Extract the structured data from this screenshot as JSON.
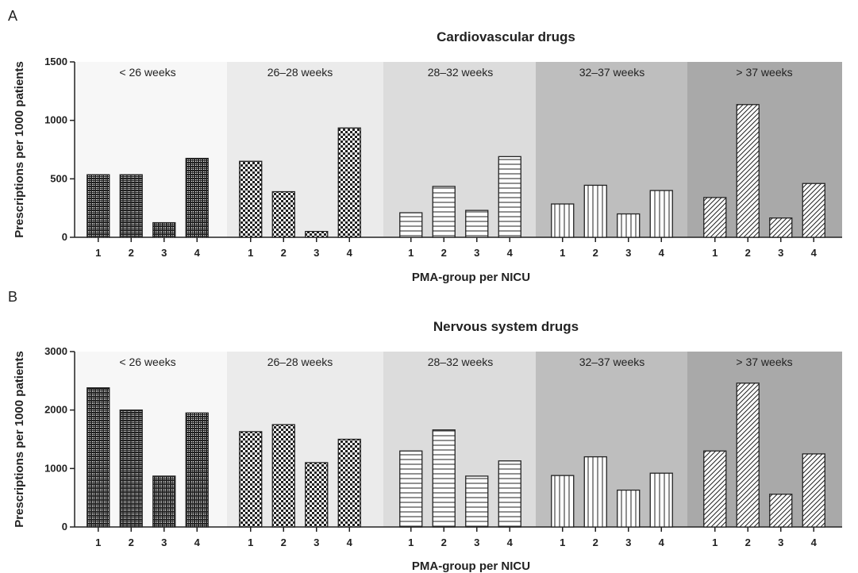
{
  "chart_data": [
    {
      "type": "bar",
      "panel": "A",
      "title": "Cardiovascular drugs",
      "xlabel": "PMA-group per NICU",
      "ylabel": "Prescriptions per 1000 patients",
      "ylim": [
        0,
        1500
      ],
      "yticks": [
        "0",
        "500",
        "1000",
        "1500"
      ],
      "categories": [
        "1",
        "2",
        "3",
        "4"
      ],
      "groups": [
        {
          "label": "< 26 weeks",
          "values": [
            535,
            535,
            125,
            675
          ]
        },
        {
          "label": "26–28 weeks",
          "values": [
            650,
            390,
            50,
            935
          ]
        },
        {
          "label": "28–32 weeks",
          "values": [
            210,
            435,
            230,
            690
          ]
        },
        {
          "label": "32–37 weeks",
          "values": [
            285,
            445,
            200,
            400
          ]
        },
        {
          "label": "> 37 weeks",
          "values": [
            340,
            1135,
            165,
            460
          ]
        }
      ]
    },
    {
      "type": "bar",
      "panel": "B",
      "title": "Nervous system drugs",
      "xlabel": "PMA-group per NICU",
      "ylabel": "Prescriptions per 1000 patients",
      "ylim": [
        0,
        3000
      ],
      "yticks": [
        "0",
        "1000",
        "2000",
        "3000"
      ],
      "categories": [
        "1",
        "2",
        "3",
        "4"
      ],
      "groups": [
        {
          "label": "< 26 weeks",
          "values": [
            2380,
            2000,
            870,
            1950
          ]
        },
        {
          "label": "26–28 weeks",
          "values": [
            1630,
            1750,
            1100,
            1500
          ]
        },
        {
          "label": "28–32 weeks",
          "values": [
            1300,
            1660,
            870,
            1130
          ]
        },
        {
          "label": "32–37 weeks",
          "values": [
            880,
            1200,
            630,
            920
          ]
        },
        {
          "label": "> 37 weeks",
          "values": [
            1300,
            2460,
            560,
            1250
          ]
        }
      ]
    }
  ],
  "colors": {
    "group_backgrounds": [
      "#f7f7f7",
      "#ebebeb",
      "#dcdcdc",
      "#bebebe",
      "#a9a9a9"
    ],
    "bar_ink": "#222222",
    "bar_fill": "#ffffff"
  }
}
